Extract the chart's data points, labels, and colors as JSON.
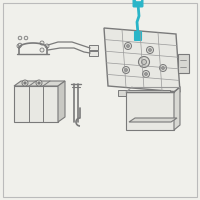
{
  "bg": "#f0f0eb",
  "lc": "#7a7a7a",
  "lc2": "#999999",
  "teal": "#2ab5c8",
  "white": "#ffffff",
  "face_light": "#e8e8e3",
  "face_mid": "#d8d8d3",
  "face_dark": "#c8c8c3",
  "border": "#bbbbbb"
}
